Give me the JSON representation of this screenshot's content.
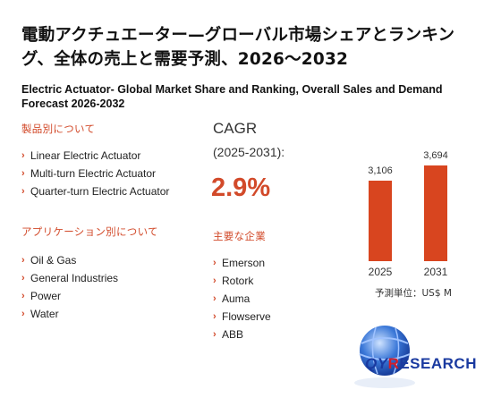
{
  "title_ja": "電動アクチュエーター—グローバル市場シェアとランキング、全体の売上と需要予測、2026～2032",
  "title_en": "Electric Actuator- Global Market Share and Ranking, Overall Sales and Demand Forecast 2026-2032",
  "by_product": {
    "heading": "製品別について",
    "items": [
      "Linear Electric Actuator",
      "Multi-turn Electric Actuator",
      "Quarter-turn Electric Actuator"
    ]
  },
  "by_application": {
    "heading": "アプリケーション別について",
    "items": [
      "Oil & Gas",
      "General Industries",
      "Power",
      "Water"
    ]
  },
  "cagr": {
    "label": "CAGR",
    "period": "(2025-2031):",
    "value": "2.9%"
  },
  "key_players": {
    "heading": "主要な企業",
    "items": [
      "Emerson",
      "Rotork",
      "Auma",
      "Flowserve",
      "ABB"
    ]
  },
  "chart_data": {
    "type": "bar",
    "categories": [
      "2025",
      "2031"
    ],
    "values": [
      3106,
      3694
    ],
    "value_labels": [
      "3,106",
      "3,694"
    ],
    "bar_color": "#d8451f"
  },
  "unit_note": "予測単位：US$ M",
  "logo": {
    "qy": "QY",
    "r": "R",
    "esearch": "ESEARCH"
  },
  "colors": {
    "accent": "#d24a2a",
    "bar": "#d8451f",
    "logo_blue": "#1a3aa0",
    "logo_red": "#d21f2a"
  }
}
